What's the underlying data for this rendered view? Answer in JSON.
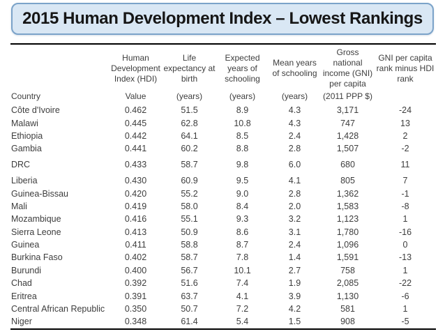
{
  "title": "2015 Human Development Index – Lowest Rankings",
  "colors": {
    "title_fill": "#d9e7f4",
    "title_border": "#7ba3c9",
    "rule": "#000000",
    "text": "#3d3d3d"
  },
  "table": {
    "columns": [
      {
        "header": "",
        "sub": "Country"
      },
      {
        "header": "Human Development Index (HDI)",
        "sub": "Value"
      },
      {
        "header": "Life expectancy at birth",
        "sub": "(years)"
      },
      {
        "header": "Expected years of schooling",
        "sub": "(years)"
      },
      {
        "header": "Mean years of schooling",
        "sub": "(years)"
      },
      {
        "header": "Gross national income (GNI) per capita",
        "sub": "(2011 PPP $)"
      },
      {
        "header": "GNI per capita rank minus HDI rank",
        "sub": ""
      }
    ],
    "rows": [
      {
        "country": "Côte d'Ivoire",
        "values": [
          "0.462",
          "51.5",
          "8.9",
          "4.3",
          "3,171",
          "-24"
        ]
      },
      {
        "country": "Malawi",
        "values": [
          "0.445",
          "62.8",
          "10.8",
          "4.3",
          "747",
          "13"
        ]
      },
      {
        "country": "Ethiopia",
        "values": [
          "0.442",
          "64.1",
          "8.5",
          "2.4",
          "1,428",
          "2"
        ]
      },
      {
        "country": "Gambia",
        "values": [
          "0.441",
          "60.2",
          "8.8",
          "2.8",
          "1,507",
          "-2"
        ]
      },
      {
        "country": "DRC",
        "values": [
          "0.433",
          "58.7",
          "9.8",
          "6.0",
          "680",
          "11"
        ],
        "gap_before": true
      },
      {
        "country": "Liberia",
        "values": [
          "0.430",
          "60.9",
          "9.5",
          "4.1",
          "805",
          "7"
        ],
        "gap_before": true
      },
      {
        "country": "Guinea-Bissau",
        "values": [
          "0.420",
          "55.2",
          "9.0",
          "2.8",
          "1,362",
          "-1"
        ]
      },
      {
        "country": "Mali",
        "values": [
          "0.419",
          "58.0",
          "8.4",
          "2.0",
          "1,583",
          "-8"
        ]
      },
      {
        "country": "Mozambique",
        "values": [
          "0.416",
          "55.1",
          "9.3",
          "3.2",
          "1,123",
          "1"
        ]
      },
      {
        "country": "Sierra Leone",
        "values": [
          "0.413",
          "50.9",
          "8.6",
          "3.1",
          "1,780",
          "-16"
        ]
      },
      {
        "country": "Guinea",
        "values": [
          "0.411",
          "58.8",
          "8.7",
          "2.4",
          "1,096",
          "0"
        ]
      },
      {
        "country": "Burkina Faso",
        "values": [
          "0.402",
          "58.7",
          "7.8",
          "1.4",
          "1,591",
          "-13"
        ]
      },
      {
        "country": "Burundi",
        "values": [
          "0.400",
          "56.7",
          "10.1",
          "2.7",
          "758",
          "1"
        ]
      },
      {
        "country": "Chad",
        "values": [
          "0.392",
          "51.6",
          "7.4",
          "1.9",
          "2,085",
          "-22"
        ]
      },
      {
        "country": "Eritrea",
        "values": [
          "0.391",
          "63.7",
          "4.1",
          "3.9",
          "1,130",
          "-6"
        ]
      },
      {
        "country": "Central African Republic",
        "values": [
          "0.350",
          "50.7",
          "7.2",
          "4.2",
          "581",
          "1"
        ]
      },
      {
        "country": "Niger",
        "values": [
          "0.348",
          "61.4",
          "5.4",
          "1.5",
          "908",
          "-5"
        ]
      }
    ]
  }
}
